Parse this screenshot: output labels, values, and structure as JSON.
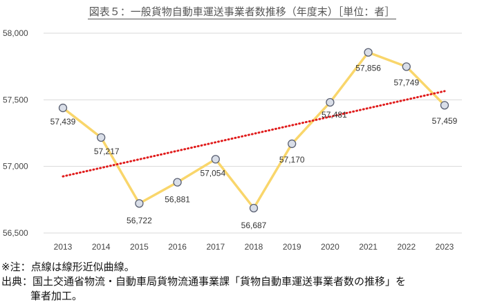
{
  "title": "図表５：一般貨物自動車運送事業者数推移（年度末）［単位：者］",
  "chart_data": {
    "type": "line",
    "title": "図表５：一般貨物自動車運送事業者数推移（年度末）［単位：者］",
    "categories": [
      "2013",
      "2014",
      "2015",
      "2016",
      "2017",
      "2018",
      "2019",
      "2020",
      "2021",
      "2022",
      "2023"
    ],
    "values": [
      57439,
      57217,
      56722,
      56881,
      57054,
      56687,
      57170,
      57481,
      57856,
      57749,
      57459
    ],
    "value_labels": [
      "57,439",
      "57,217",
      "56,722",
      "56,881",
      "57,054",
      "56,687",
      "57,170",
      "57,481",
      "57,856",
      "57,749",
      "57,459"
    ],
    "yticks": [
      "56,500",
      "57,000",
      "57,500",
      "58,000"
    ],
    "ylim": [
      56500,
      58000
    ],
    "grid": true,
    "trendline": {
      "type": "linear",
      "style": "dotted",
      "start": 56925,
      "end": 57565
    },
    "colors": {
      "line": "#F9D66B",
      "marker_fill": "#D9DEE8",
      "marker_edge": "#5A6072",
      "trend": "#E01B1B",
      "grid": "#D9D9D9"
    }
  },
  "notes": {
    "line1": "※注：点線は線形近似曲線。",
    "line2": "出典：国土交通省物流・自動車局貨物流通事業課「貨物自動車運送事業者数の推移」を",
    "line3": "筆者加工。"
  }
}
